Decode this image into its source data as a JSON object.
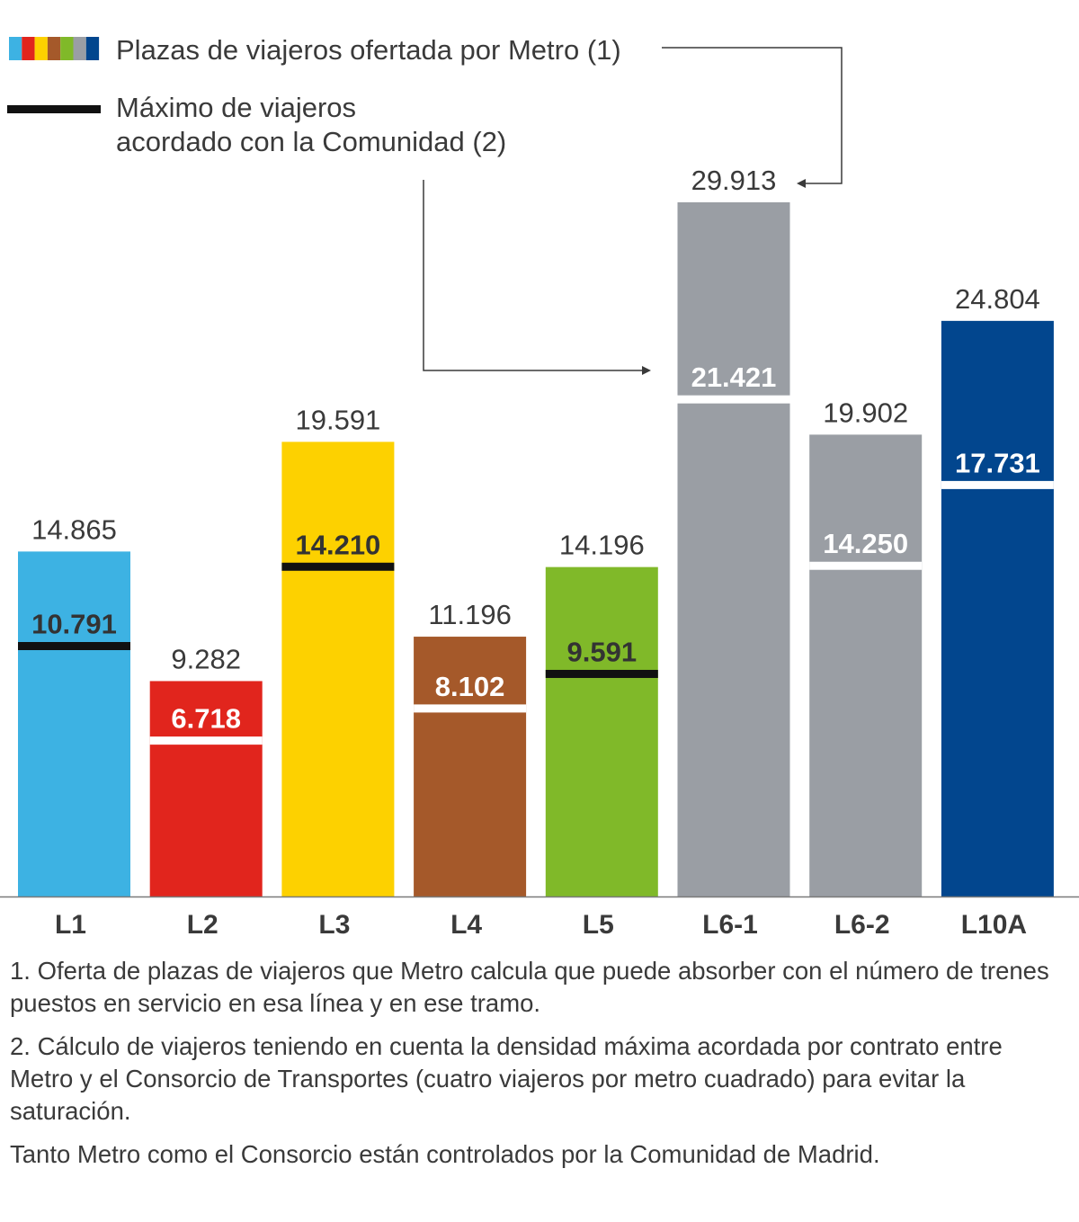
{
  "legend": {
    "offer_label": "Plazas de viajeros ofertada por Metro (1)",
    "max_label_line1": "Máximo de viajeros",
    "max_label_line2": "acordado con la Comunidad (2)"
  },
  "chart_data": {
    "type": "bar",
    "categories": [
      "L1",
      "L2",
      "L3",
      "L4",
      "L5",
      "L6-1",
      "L6-2",
      "L10A"
    ],
    "series": [
      {
        "name": "Plazas de viajeros ofertada por Metro (1)",
        "values": [
          14865,
          9282,
          19591,
          11196,
          14196,
          29913,
          19902,
          24804
        ],
        "labels": [
          "14.865",
          "9.282",
          "19.591",
          "11.196",
          "14.196",
          "29.913",
          "19.902",
          "24.804"
        ]
      },
      {
        "name": "Máximo de viajeros acordado con la Comunidad (2)",
        "values": [
          10791,
          6718,
          14210,
          8102,
          9591,
          21421,
          14250,
          17731
        ],
        "labels": [
          "10.791",
          "6.718",
          "14.210",
          "8.102",
          "9.591",
          "21.421",
          "14.250",
          "17.731"
        ]
      }
    ],
    "colors": [
      "#3db2e3",
      "#e1251d",
      "#fdd100",
      "#a5592a",
      "#80b929",
      "#9a9ea4",
      "#9a9ea4",
      "#02468e"
    ],
    "max_marker_colors": [
      "#111111",
      "#ffffff",
      "#111111",
      "#ffffff",
      "#111111",
      "#ffffff",
      "#ffffff",
      "#ffffff"
    ],
    "max_label_colors": [
      "#333333",
      "#ffffff",
      "#333333",
      "#ffffff",
      "#333333",
      "#ffffff",
      "#ffffff",
      "#ffffff"
    ],
    "ylim": [
      0,
      30000
    ],
    "grid": false
  },
  "notes": [
    "1.  Oferta de plazas de viajeros que Metro calcula que puede absorber con el número de trenes puestos en servicio en esa línea y en ese tramo.",
    "2. Cálculo de viajeros teniendo en cuenta la densidad máxima acordada por contrato entre Metro y el Consorcio de Transportes (cuatro viajeros por metro cuadrado) para evitar la saturación.",
    "Tanto Metro como el Consorcio están controlados por la Comunidad de Madrid."
  ]
}
